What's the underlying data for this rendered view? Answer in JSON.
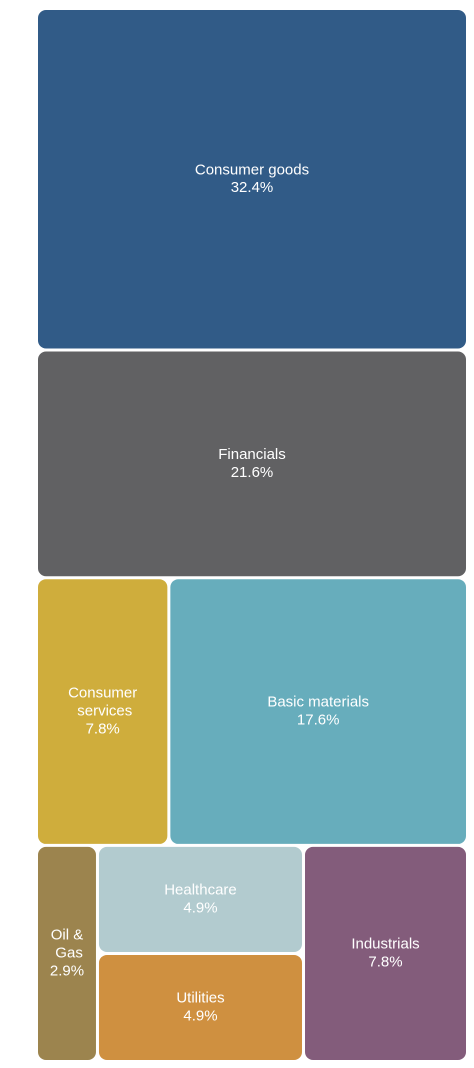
{
  "chart_data": {
    "type": "treemap",
    "categories": [
      "Consumer goods",
      "Financials",
      "Consumer services",
      "Basic materials",
      "Oil & Gas",
      "Healthcare",
      "Utilities",
      "Industrials"
    ],
    "values": [
      32.4,
      21.6,
      7.8,
      17.6,
      2.9,
      4.9,
      4.9,
      7.8
    ],
    "value_labels": [
      "32.4%",
      "21.6%",
      "7.8%",
      "17.6%",
      "2.9%",
      "4.9%",
      "4.9%",
      "7.8%"
    ],
    "colors": [
      "#315b87",
      "#616163",
      "#cfad3c",
      "#67adbc",
      "#9c844e",
      "#b2cbcf",
      "#cf9040",
      "#835c7b"
    ]
  }
}
